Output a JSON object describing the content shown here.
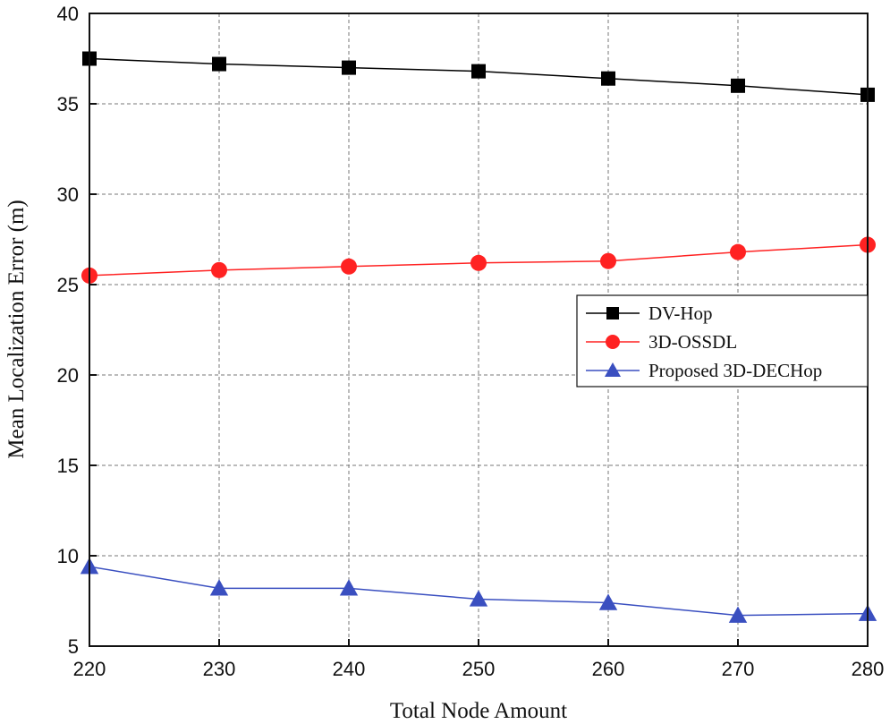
{
  "chart_data": {
    "type": "line",
    "title": "",
    "xlabel": "Total Node Amount",
    "ylabel": "Mean Localization Error (m)",
    "x": [
      220,
      230,
      240,
      250,
      260,
      270,
      280
    ],
    "xlim": [
      220,
      280
    ],
    "ylim": [
      5,
      40
    ],
    "xticks": [
      "220",
      "230",
      "240",
      "250",
      "260",
      "270",
      "280"
    ],
    "yticks": [
      "5",
      "10",
      "15",
      "20",
      "25",
      "30",
      "35",
      "40"
    ],
    "grid": true,
    "legend_position": "right-middle",
    "series": [
      {
        "name": "DV-Hop",
        "color": "#000000",
        "marker": "square",
        "values": [
          37.5,
          37.2,
          37.0,
          36.8,
          36.4,
          36.0,
          35.5
        ]
      },
      {
        "name": "3D-OSSDL",
        "color": "#ff2222",
        "marker": "circle",
        "values": [
          25.5,
          25.8,
          26.0,
          26.2,
          26.3,
          26.8,
          27.2
        ]
      },
      {
        "name": "Proposed 3D-DECHop",
        "color": "#3a4fc0",
        "marker": "triangle",
        "values": [
          9.4,
          8.2,
          8.2,
          7.6,
          7.4,
          6.7,
          6.8
        ]
      }
    ]
  }
}
